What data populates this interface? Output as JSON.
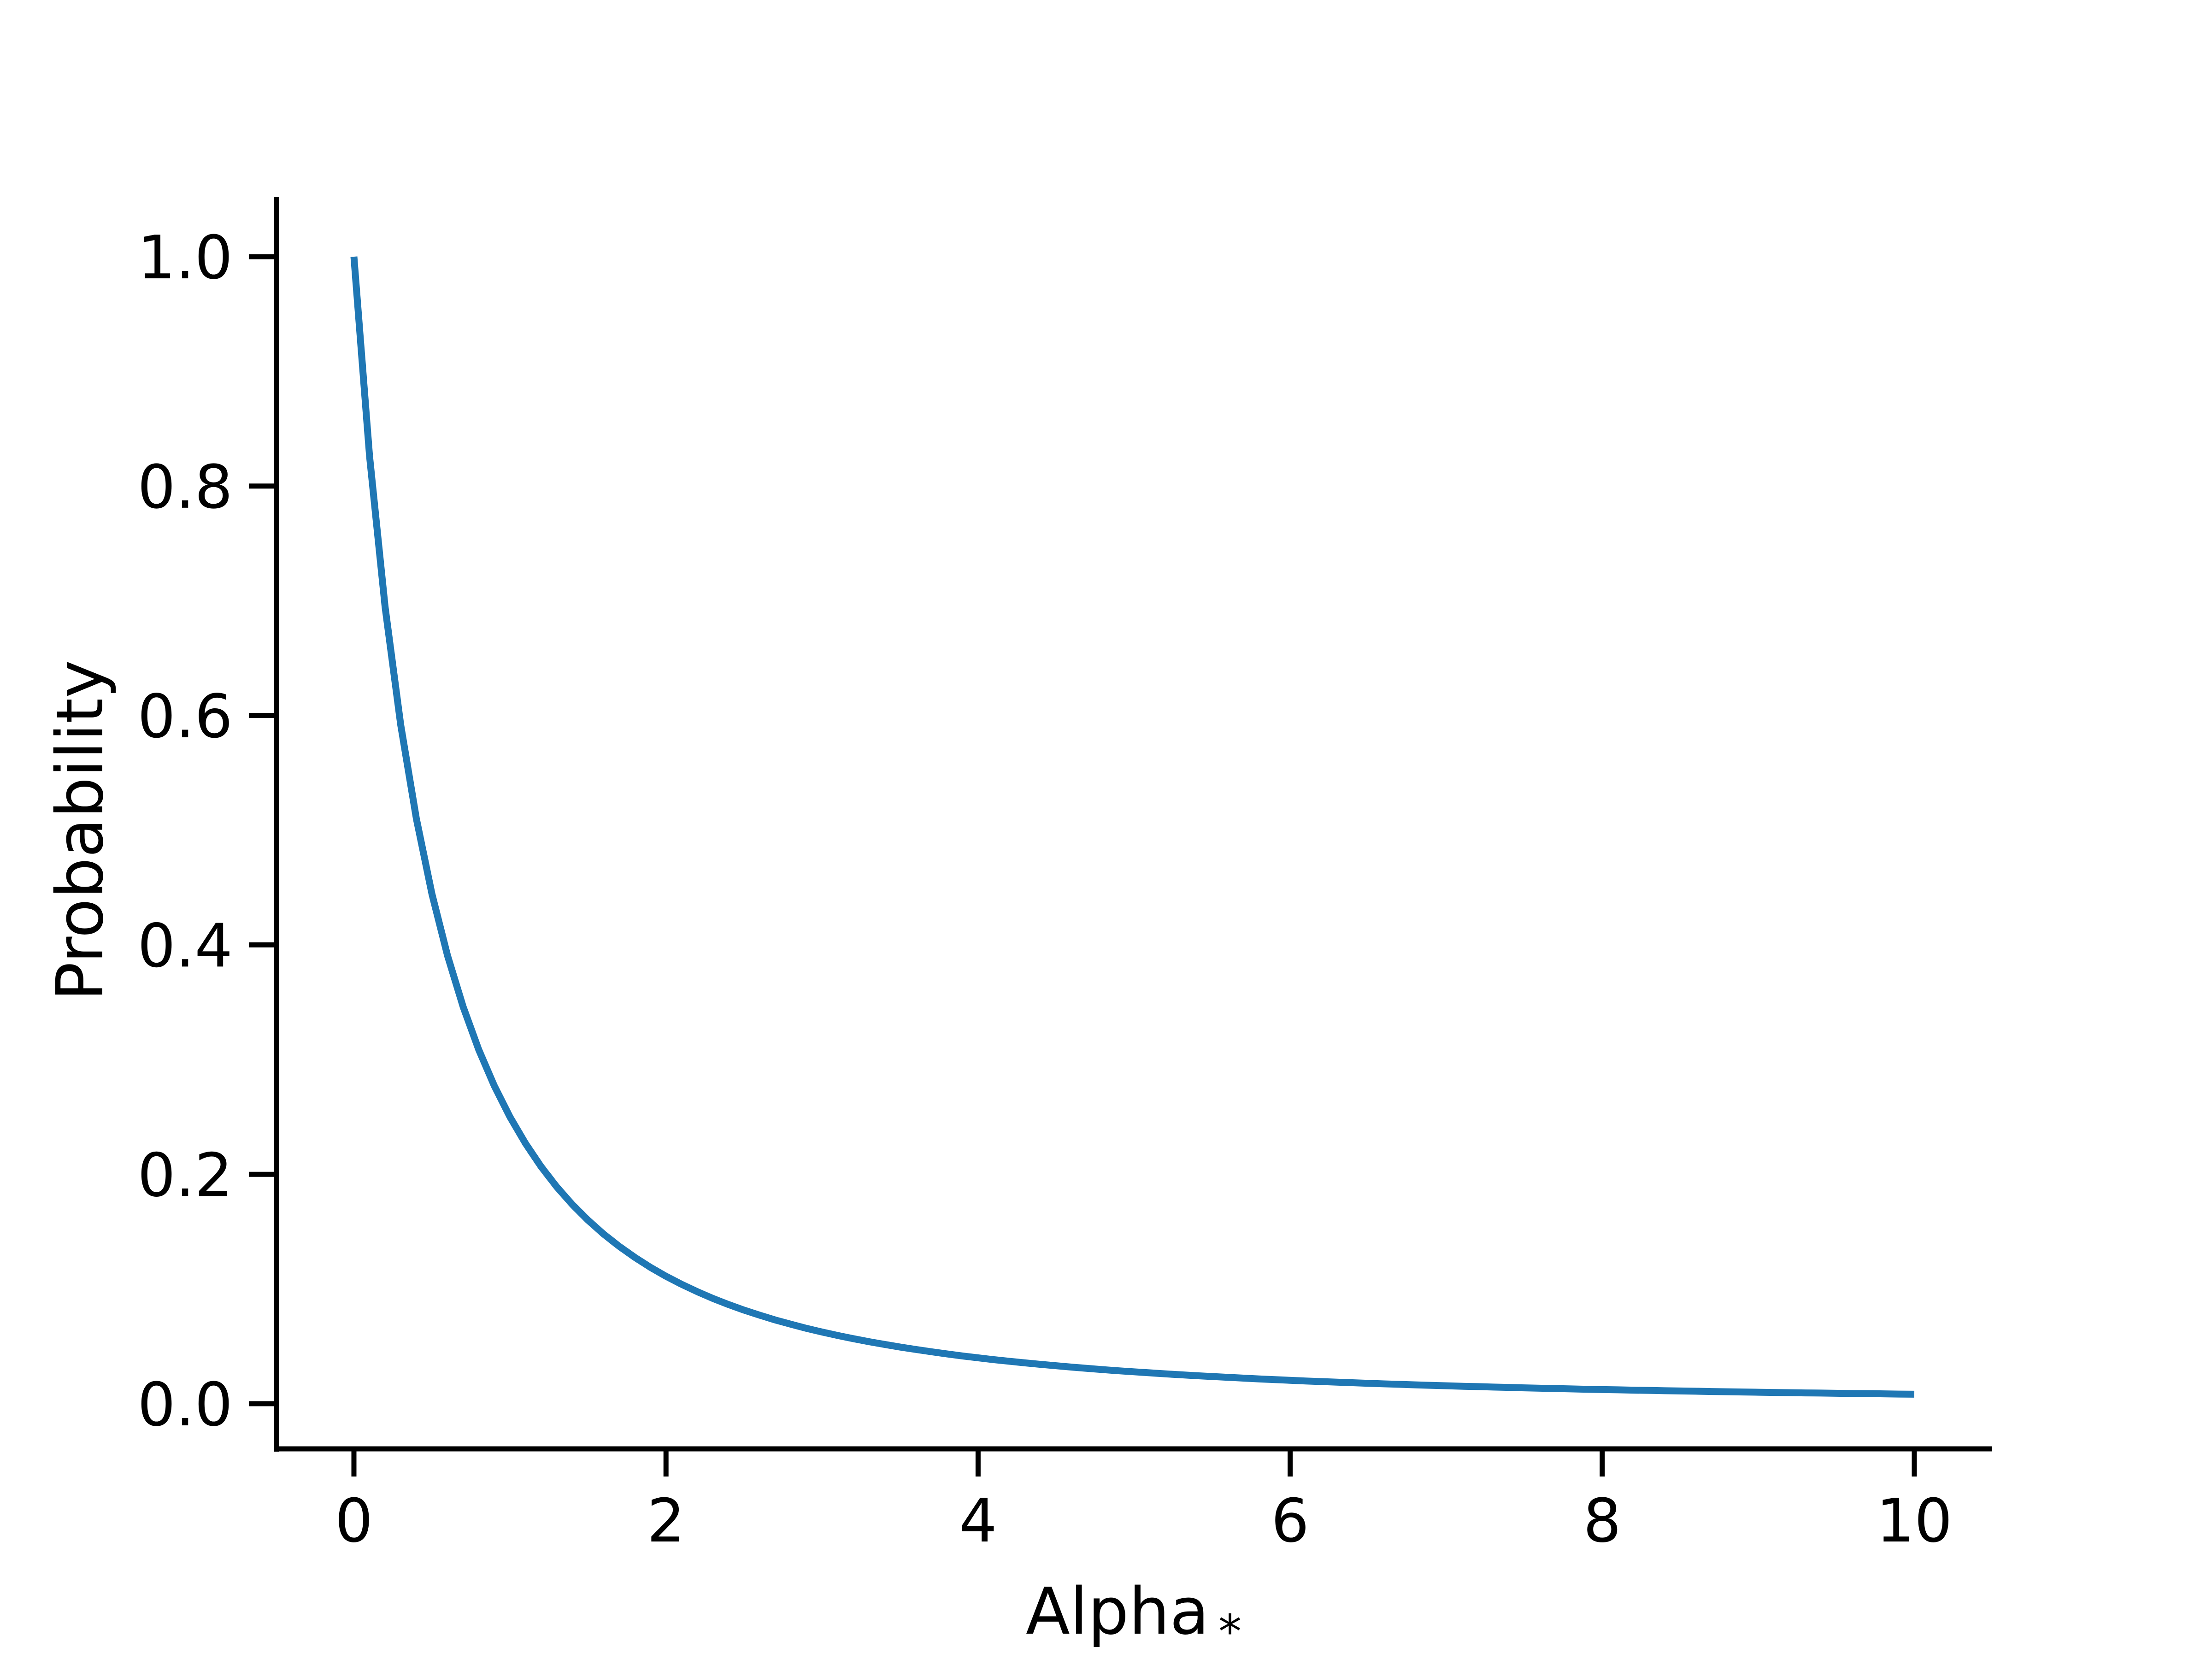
{
  "chart_data": {
    "type": "line",
    "title": "",
    "xlabel": "Alpha",
    "xlabel_subscript": "*",
    "ylabel": "Probability",
    "xlim": [
      -0.5,
      10.5
    ],
    "ylim": [
      -0.04,
      1.05
    ],
    "grid": false,
    "xticks": [
      0,
      2,
      4,
      6,
      8,
      10
    ],
    "xtick_labels": [
      "0",
      "2",
      "4",
      "6",
      "8",
      "10"
    ],
    "yticks": [
      0.0,
      0.2,
      0.4,
      0.6,
      0.8,
      1.0
    ],
    "ytick_labels": [
      "0.0",
      "0.2",
      "0.4",
      "0.6",
      "0.8",
      "1.0"
    ],
    "line_color": "#1f77b4",
    "series": [
      {
        "x": [
          0,
          0.1,
          0.2,
          0.3,
          0.4,
          0.5,
          0.6,
          0.7,
          0.8,
          0.9,
          1,
          1.1,
          1.2,
          1.3,
          1.4,
          1.5,
          1.6,
          1.7,
          1.8,
          1.9,
          2,
          2.1,
          2.2,
          2.3,
          2.4,
          2.5,
          2.6,
          2.7,
          2.8,
          2.9,
          3,
          3.1,
          3.2,
          3.3,
          3.4,
          3.5,
          3.6,
          3.7,
          3.8,
          3.9,
          4,
          4.1,
          4.2,
          4.3,
          4.4,
          4.5,
          4.6,
          4.7,
          4.8,
          4.9,
          5,
          5.1,
          5.2,
          5.3,
          5.4,
          5.5,
          5.6,
          5.7,
          5.8,
          5.9,
          6,
          6.1,
          6.2,
          6.3,
          6.4,
          6.5,
          6.6,
          6.7,
          6.8,
          6.9,
          7,
          7.1,
          7.2,
          7.3,
          7.4,
          7.5,
          7.6,
          7.7,
          7.8,
          7.9,
          8,
          8.1,
          8.2,
          8.3,
          8.4,
          8.5,
          8.6,
          8.7,
          8.8,
          8.9,
          9,
          9.1,
          9.2,
          9.3,
          9.4,
          9.5,
          9.6,
          9.7,
          9.8,
          9.9,
          10
        ],
        "y": [
          1,
          0.8264,
          0.6944,
          0.5917,
          0.5102,
          0.4444,
          0.3906,
          0.346,
          0.3086,
          0.277,
          0.25,
          0.2268,
          0.2066,
          0.189,
          0.1736,
          0.16,
          0.1479,
          0.1372,
          0.1276,
          0.1189,
          0.1111,
          0.1041,
          0.0977,
          0.0918,
          0.0865,
          0.0816,
          0.0772,
          0.073,
          0.0693,
          0.0657,
          0.0625,
          0.0595,
          0.0567,
          0.0541,
          0.0517,
          0.0494,
          0.0473,
          0.0453,
          0.0434,
          0.0416,
          0.04,
          0.0384,
          0.037,
          0.0356,
          0.0343,
          0.0331,
          0.0319,
          0.0308,
          0.0297,
          0.0287,
          0.0278,
          0.0269,
          0.026,
          0.0252,
          0.0244,
          0.0237,
          0.023,
          0.0223,
          0.0216,
          0.021,
          0.0204,
          0.0198,
          0.0193,
          0.0188,
          0.0183,
          0.0178,
          0.0173,
          0.0169,
          0.0164,
          0.016,
          0.0156,
          0.0152,
          0.0149,
          0.0145,
          0.0142,
          0.0138,
          0.0135,
          0.0132,
          0.0129,
          0.0126,
          0.0123,
          0.0121,
          0.0118,
          0.0116,
          0.0113,
          0.0111,
          0.0109,
          0.0106,
          0.0104,
          0.0102,
          0.01,
          0.0098,
          0.0096,
          0.0094,
          0.0093,
          0.0091,
          0.0089,
          0.0088,
          0.0086,
          0.0084,
          0.0083
        ]
      }
    ]
  }
}
